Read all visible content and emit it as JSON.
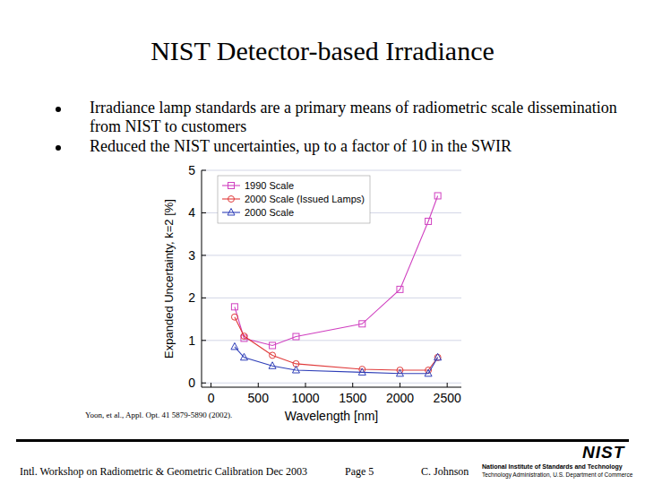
{
  "slide": {
    "title": "NIST Detector-based Irradiance",
    "bullets": [
      "Irradiance lamp standards are a primary means of radiometric scale dissemination from NIST to customers",
      "Reduced the NIST uncertainties, up to a factor of 10 in the SWIR"
    ],
    "citation": "Yoon, et al., Appl. Opt. 41 5879-5890 (2002).",
    "footer": {
      "event": "Intl. Workshop on Radiometric & Geometric Calibration  Dec 2003",
      "page": "Page 5",
      "author": "C. Johnson",
      "logo": "NIST",
      "agency": "National Institute of Standards and Technology",
      "department": "Technology Administration, U.S. Department of Commerce"
    }
  },
  "chart_data": {
    "type": "line",
    "x_label": "Wavelength [nm]",
    "y_label": "Expanded Uncertainty, k=2 [%]",
    "x": [
      250,
      350,
      650,
      900,
      1600,
      2000,
      2300,
      2400
    ],
    "series": [
      {
        "name": "1990 Scale",
        "color": "#d040c0",
        "marker": "square",
        "line_style": "solid",
        "values": [
          1.79,
          1.05,
          0.88,
          1.09,
          1.39,
          2.2,
          3.8,
          4.4
        ]
      },
      {
        "name": "2000 Scale (Issued Lamps)",
        "color": "#e03a3a",
        "marker": "circle",
        "line_style": "solid",
        "values": [
          1.55,
          1.1,
          0.65,
          0.45,
          0.32,
          0.3,
          0.3,
          0.6
        ]
      },
      {
        "name": "2000 Scale",
        "color": "#2f3fb8",
        "marker": "triangle",
        "line_style": "solid",
        "values": [
          0.85,
          0.6,
          0.4,
          0.3,
          0.25,
          0.22,
          0.22,
          0.6
        ]
      }
    ],
    "xlim": [
      -100,
      2650
    ],
    "ylim": [
      -0.1,
      5
    ],
    "xticks": [
      0,
      500,
      1000,
      1500,
      2000,
      2500
    ],
    "yticks": [
      0,
      1,
      2,
      3,
      4,
      5
    ],
    "grid": true,
    "legend": "upper left"
  }
}
